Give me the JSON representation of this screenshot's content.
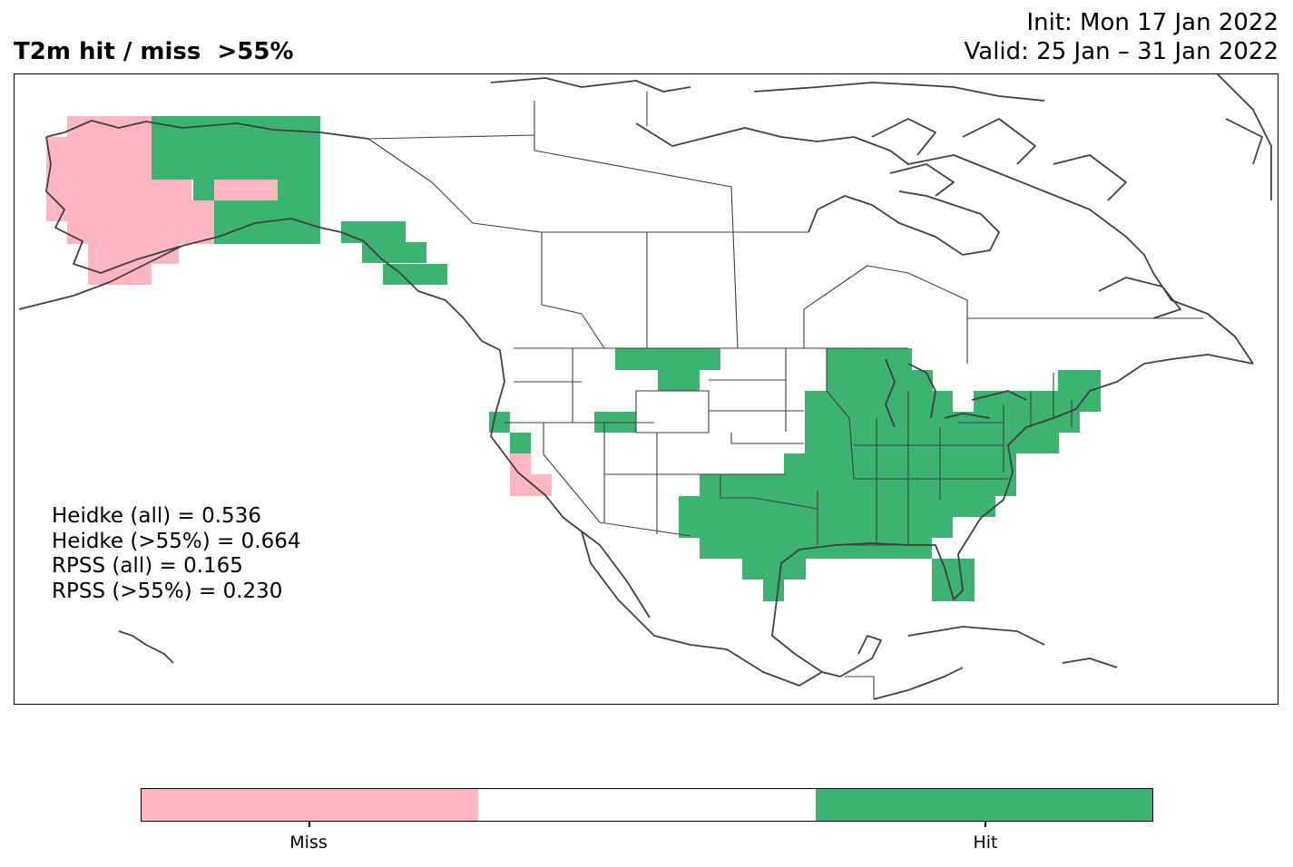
{
  "header": {
    "title": "T2m hit / miss  >55%",
    "init": "Init: Mon 17 Jan 2022",
    "valid": "Valid: 25 Jan – 31 Jan 2022"
  },
  "scores": [
    "Heidke (all) = 0.536",
    "Heidke (>55%) = 0.664",
    "RPSS (all) = 0.165",
    "RPSS (>55%) = 0.230"
  ],
  "colorbar": {
    "categories": [
      "Miss",
      "",
      "Hit"
    ],
    "colors": [
      "#ffb6c1",
      "#ffffff",
      "#3cb371"
    ],
    "tick_labels": [
      "Miss",
      "Hit"
    ]
  },
  "chart_data": {
    "type": "heatmap",
    "title": "T2m hit / miss  >55%",
    "categories": [
      "Miss",
      "Hit"
    ],
    "colors": {
      "Miss": "#ffb6c1",
      "Hit": "#3cb371",
      "coast": "#404040",
      "border": "#404040"
    },
    "regions": [
      {
        "name": "Alaska",
        "value": "Miss"
      },
      {
        "name": "North Slope / eastern Alaska",
        "value": "Hit"
      },
      {
        "name": "Alaska panhandle",
        "value": "Hit"
      },
      {
        "name": "Northern Montana",
        "value": "Hit"
      },
      {
        "name": "Coastal central California",
        "value": "Hit"
      },
      {
        "name": "Southern California",
        "value": "Miss"
      },
      {
        "name": "Northern Utah",
        "value": "Hit"
      },
      {
        "name": "Central and eastern United States",
        "value": "Hit"
      },
      {
        "name": "Texas and Gulf Coast",
        "value": "Hit"
      },
      {
        "name": "New England",
        "value": "Hit"
      },
      {
        "name": "Florida",
        "value": "Hit"
      }
    ]
  }
}
